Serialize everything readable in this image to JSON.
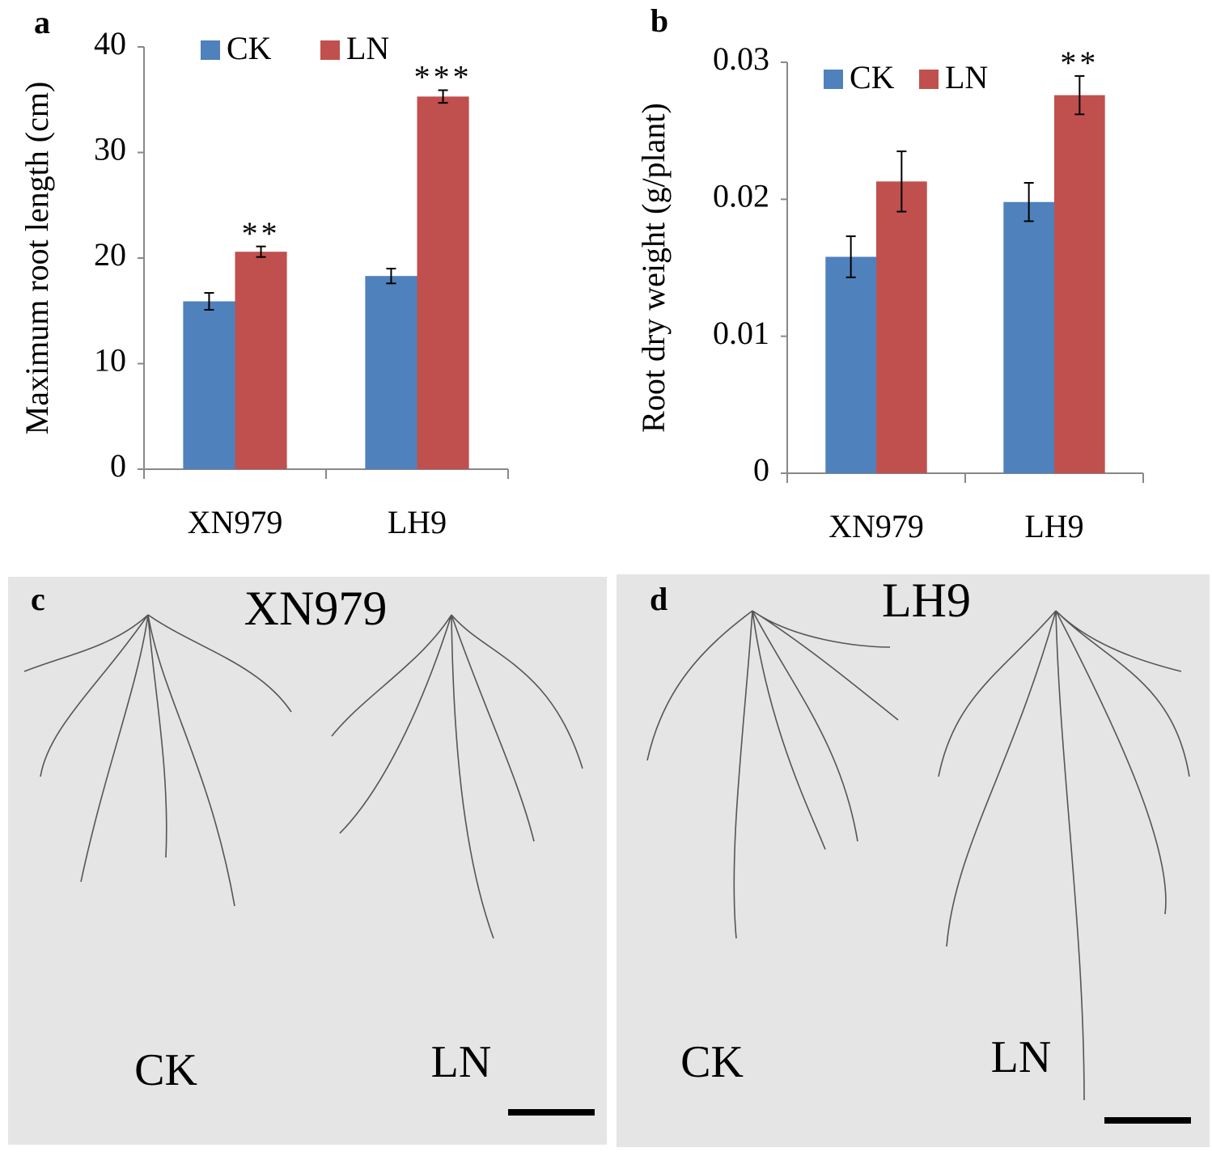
{
  "chart_data": [
    {
      "type": "bar",
      "panel": "a",
      "ylabel": "Maximum root length (cm)",
      "categories": [
        "XN979",
        "LH9"
      ],
      "series": [
        {
          "name": "CK",
          "color": "#4f81bd",
          "values": [
            15.9,
            18.3
          ],
          "errors": [
            0.8,
            0.7
          ]
        },
        {
          "name": "LN",
          "color": "#c0504d",
          "values": [
            20.6,
            35.3
          ],
          "errors": [
            0.5,
            0.6
          ],
          "annotations": [
            "**",
            "***"
          ]
        }
      ],
      "ylim": [
        0,
        40
      ],
      "yticks": [
        0,
        10,
        20,
        30,
        40
      ],
      "grid": false
    },
    {
      "type": "bar",
      "panel": "b",
      "ylabel": "Root dry weight (g/plant)",
      "categories": [
        "XN979",
        "LH9"
      ],
      "series": [
        {
          "name": "CK",
          "color": "#4f81bd",
          "values": [
            0.0158,
            0.0198
          ],
          "errors": [
            0.0015,
            0.0014
          ]
        },
        {
          "name": "LN",
          "color": "#c0504d",
          "values": [
            0.0213,
            0.0276
          ],
          "errors": [
            0.0022,
            0.0014
          ],
          "annotations": [
            null,
            "**"
          ]
        }
      ],
      "ylim": [
        0,
        0.03
      ],
      "yticks": [
        0,
        0.01,
        0.02,
        0.03
      ],
      "grid": false
    }
  ],
  "photos": [
    {
      "panel": "c",
      "title": "XN979",
      "left": "CK",
      "right": "LN"
    },
    {
      "panel": "d",
      "title": "LH9",
      "left": "CK",
      "right": "LN"
    }
  ]
}
